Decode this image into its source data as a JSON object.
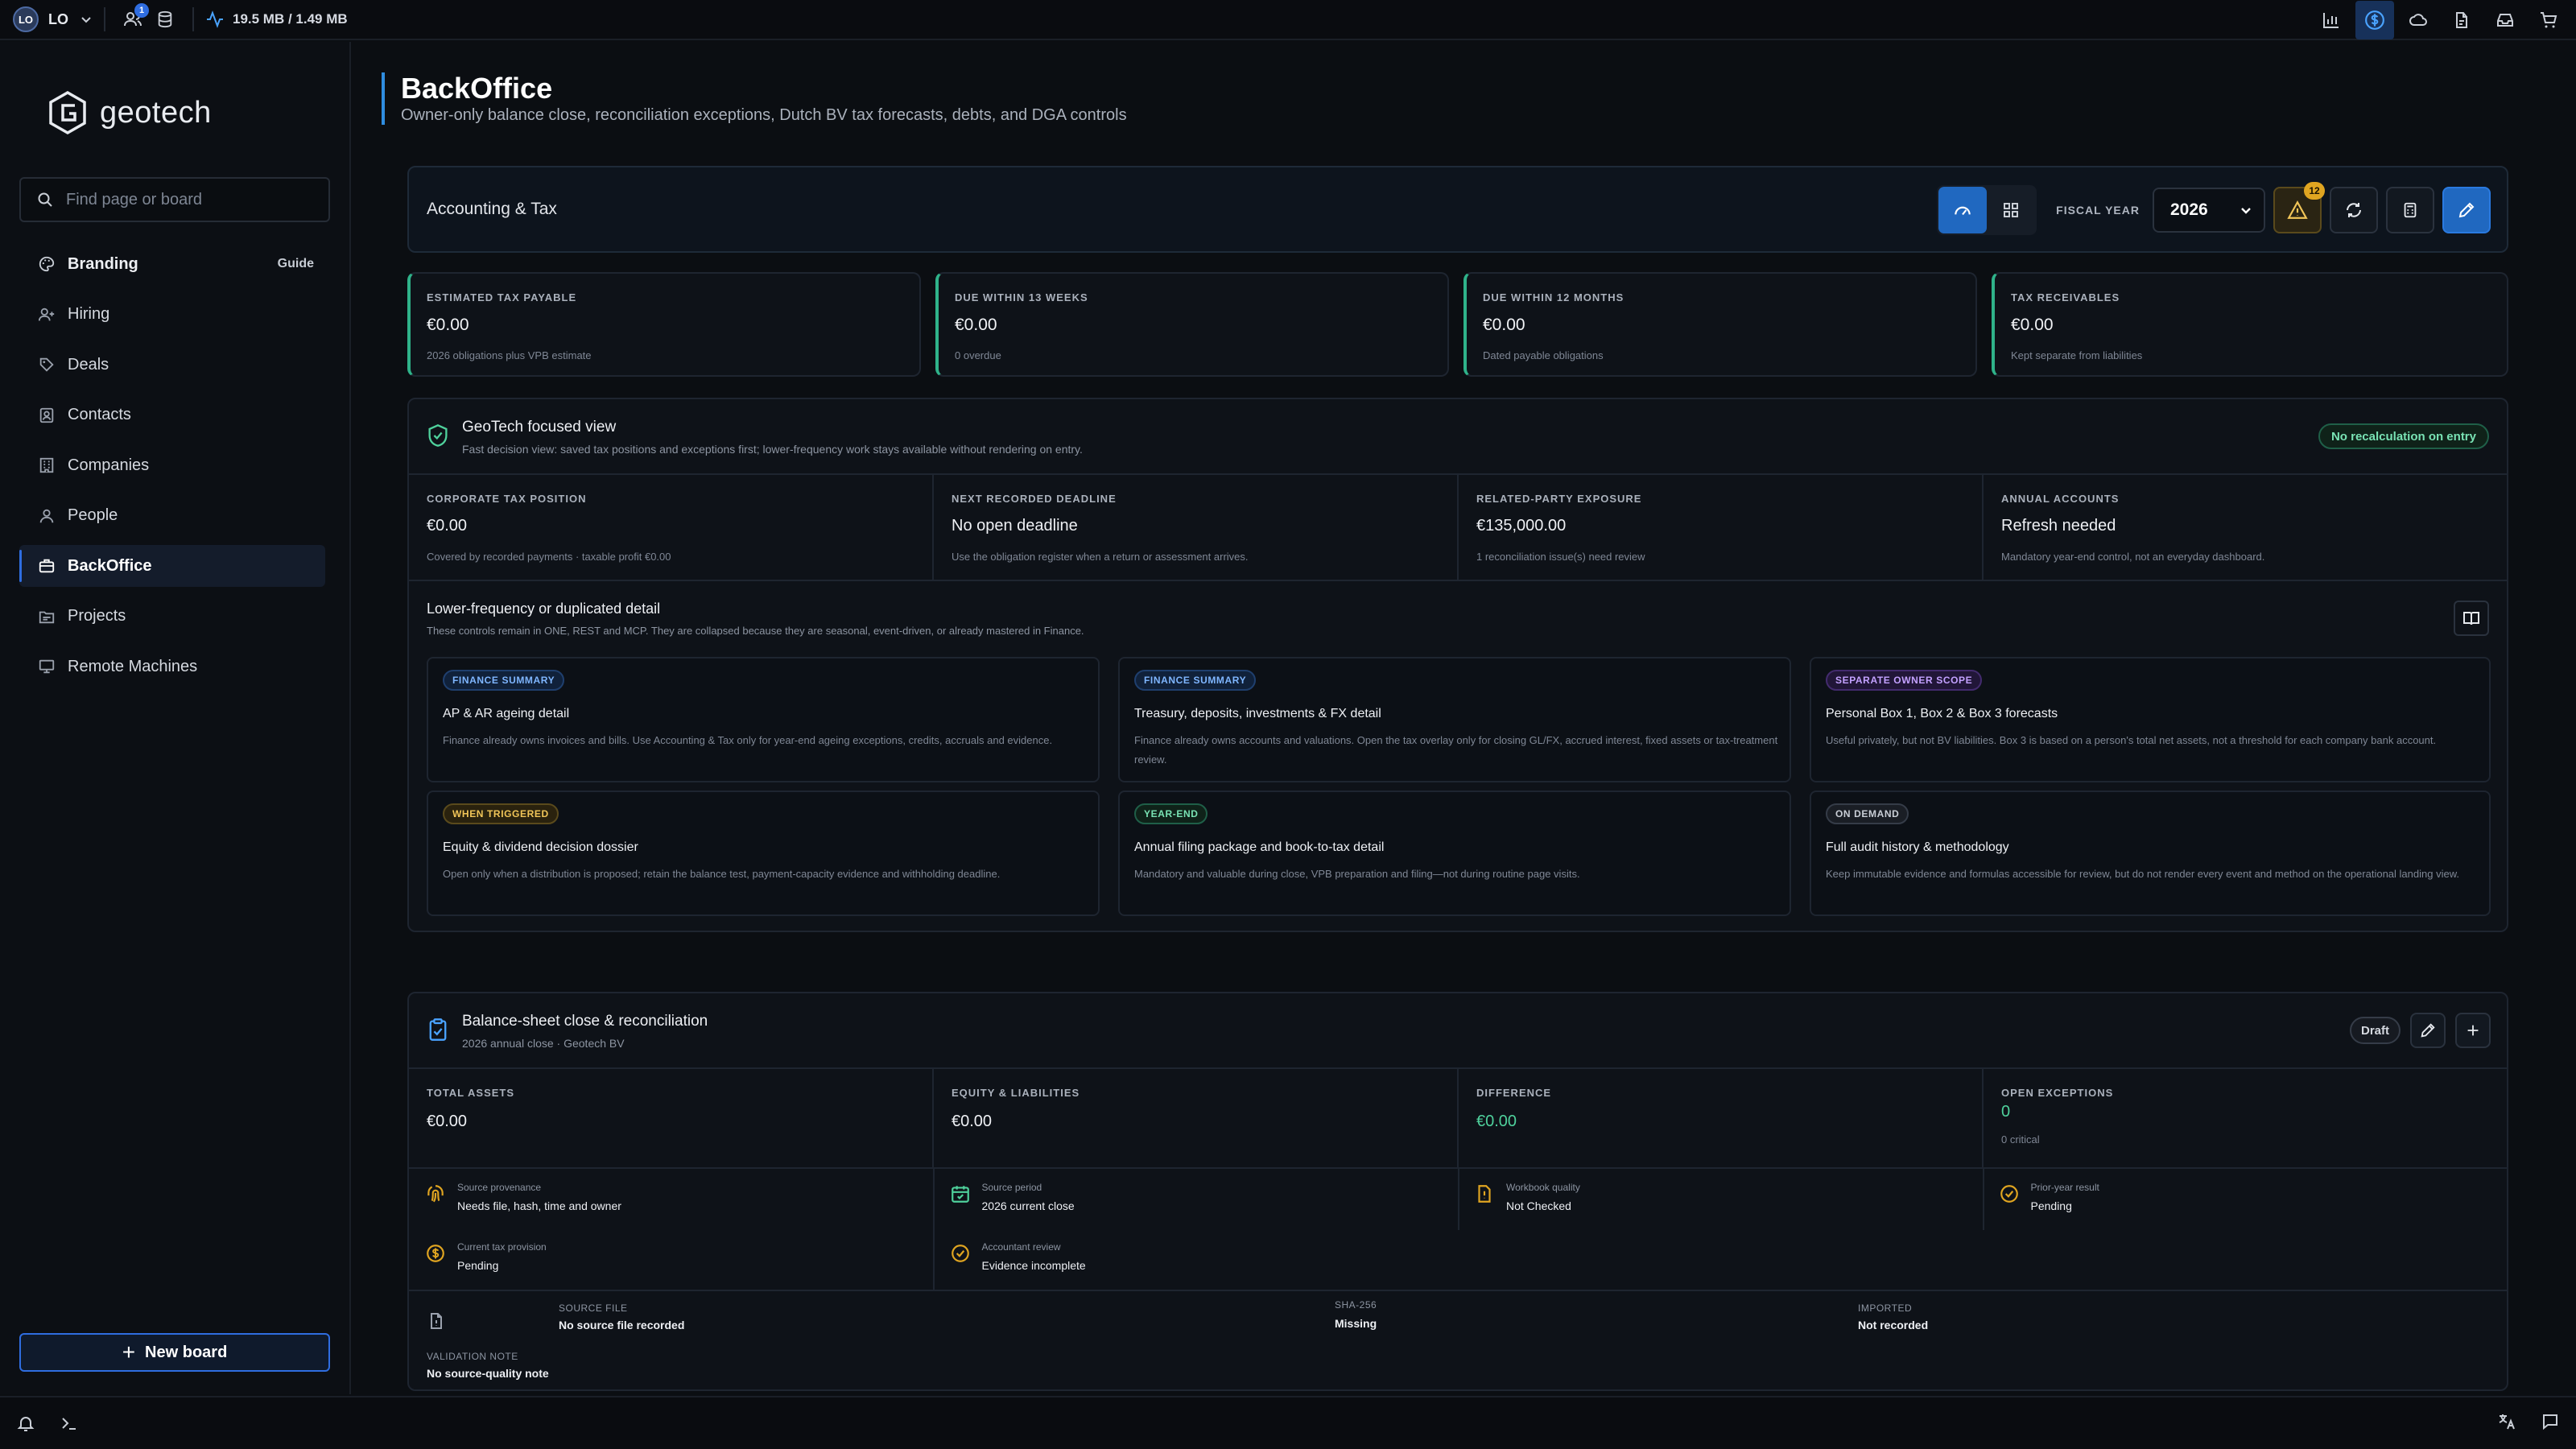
{
  "topbar": {
    "avatar": "LO",
    "user": "LO",
    "notification_count": "1",
    "memory": "19.5 MB / 1.49 MB"
  },
  "sidebar": {
    "logo": "geotech",
    "search_placeholder": "Find page or board",
    "guide": "Guide",
    "items": [
      {
        "label": "Branding",
        "icon": "palette-icon"
      },
      {
        "label": "Hiring",
        "icon": "user-plus-icon"
      },
      {
        "label": "Deals",
        "icon": "handshake-icon"
      },
      {
        "label": "Contacts",
        "icon": "contact-card-icon"
      },
      {
        "label": "Companies",
        "icon": "building-icon"
      },
      {
        "label": "People",
        "icon": "people-icon"
      },
      {
        "label": "BackOffice",
        "icon": "briefcase-icon"
      },
      {
        "label": "Projects",
        "icon": "folder-icon"
      },
      {
        "label": "Remote Machines",
        "icon": "monitor-icon"
      }
    ],
    "new_board": "New board"
  },
  "page": {
    "title": "BackOffice",
    "subtitle": "Owner-only balance close, reconciliation exceptions, Dutch BV tax forecasts, debts, and DGA controls"
  },
  "toolbar": {
    "title": "Accounting & Tax",
    "fiscal_label": "FISCAL YEAR",
    "fiscal_year": "2026",
    "warning_count": "12"
  },
  "kpis": [
    {
      "label": "ESTIMATED TAX PAYABLE",
      "value": "€0.00",
      "sub": "2026 obligations plus VPB estimate"
    },
    {
      "label": "DUE WITHIN 13 WEEKS",
      "value": "€0.00",
      "sub": "0 overdue"
    },
    {
      "label": "DUE WITHIN 12 MONTHS",
      "value": "€0.00",
      "sub": "Dated payable obligations"
    },
    {
      "label": "TAX RECEIVABLES",
      "value": "€0.00",
      "sub": "Kept separate from liabilities"
    }
  ],
  "focused": {
    "title": "GeoTech focused view",
    "subtitle": "Fast decision view: saved tax positions and exceptions first; lower-frequency work stays available without rendering on entry.",
    "chip": "No recalculation on entry",
    "cells": [
      {
        "label": "CORPORATE TAX POSITION",
        "value": "€0.00",
        "sub": "Covered by recorded payments · taxable profit €0.00"
      },
      {
        "label": "NEXT RECORDED DEADLINE",
        "value": "No open deadline",
        "sub": "Use the obligation register when a return or assessment arrives."
      },
      {
        "label": "RELATED-PARTY EXPOSURE",
        "value": "€135,000.00",
        "sub": "1 reconciliation issue(s) need review"
      },
      {
        "label": "ANNUAL ACCOUNTS",
        "value": "Refresh needed",
        "sub": "Mandatory year-end control, not an everyday dashboard."
      }
    ],
    "lower_title": "Lower-frequency or duplicated detail",
    "lower_subtitle": "These controls remain in ONE, REST and MCP. They are collapsed because they are seasonal, event-driven, or already mastered in Finance.",
    "cards": [
      {
        "tag": "FINANCE SUMMARY",
        "title": "AP & AR ageing detail",
        "text": "Finance already owns invoices and bills. Use Accounting & Tax only for year-end ageing exceptions, credits, accruals and evidence."
      },
      {
        "tag": "FINANCE SUMMARY",
        "title": "Treasury, deposits, investments & FX detail",
        "text": "Finance already owns accounts and valuations. Open the tax overlay only for closing GL/FX, accrued interest, fixed assets or tax-treatment review."
      },
      {
        "tag": "SEPARATE OWNER SCOPE",
        "title": "Personal Box 1, Box 2 & Box 3 forecasts",
        "text": "Useful privately, but not BV liabilities. Box 3 is based on a person's total net assets, not a threshold for each company bank account."
      },
      {
        "tag": "WHEN TRIGGERED",
        "title": "Equity & dividend decision dossier",
        "text": "Open only when a distribution is proposed; retain the balance test, payment-capacity evidence and withholding deadline."
      },
      {
        "tag": "YEAR-END",
        "title": "Annual filing package and book-to-tax detail",
        "text": "Mandatory and valuable during close, VPB preparation and filing—not during routine page visits."
      },
      {
        "tag": "ON DEMAND",
        "title": "Full audit history & methodology",
        "text": "Keep immutable evidence and formulas accessible for review, but do not render every event and method on the operational landing view."
      }
    ]
  },
  "balance": {
    "title": "Balance-sheet close & reconciliation",
    "subtitle": "2026 annual close · Geotech BV",
    "status": "Draft",
    "cells": [
      {
        "label": "TOTAL ASSETS",
        "value": "€0.00"
      },
      {
        "label": "EQUITY & LIABILITIES",
        "value": "€0.00"
      },
      {
        "label": "DIFFERENCE",
        "value": "€0.00"
      },
      {
        "label": "OPEN EXCEPTIONS",
        "value": "0",
        "sub": "0 critical"
      }
    ],
    "checks": [
      {
        "label": "Source provenance",
        "value": "Needs file, hash, time and owner"
      },
      {
        "label": "Source period",
        "value": "2026 current close"
      },
      {
        "label": "Workbook quality",
        "value": "Not Checked"
      },
      {
        "label": "Prior-year result",
        "value": "Pending"
      },
      {
        "label": "Current tax provision",
        "value": "Pending"
      },
      {
        "label": "Accountant review",
        "value": "Evidence incomplete"
      }
    ],
    "source_file_label": "SOURCE FILE",
    "source_file_value": "No source file recorded",
    "sha_label": "SHA-256",
    "sha_value": "Missing",
    "imported_label": "IMPORTED",
    "imported_value": "Not recorded",
    "validation_label": "VALIDATION NOTE",
    "validation_value": "No source-quality note"
  },
  "colors": {
    "accent": "#2068c0",
    "success": "#2fb38a",
    "warning": "#e0a521"
  }
}
